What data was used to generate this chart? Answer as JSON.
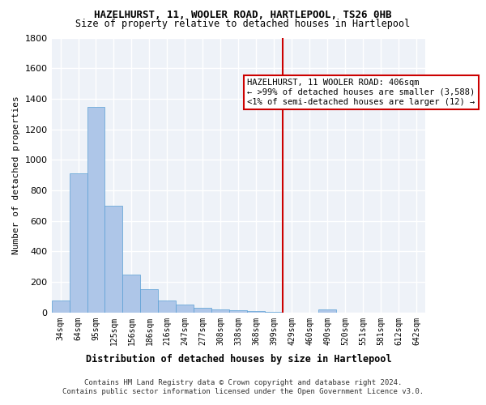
{
  "title": "HAZELHURST, 11, WOOLER ROAD, HARTLEPOOL, TS26 0HB",
  "subtitle": "Size of property relative to detached houses in Hartlepool",
  "xlabel": "Distribution of detached houses by size in Hartlepool",
  "ylabel": "Number of detached properties",
  "footer_line1": "Contains HM Land Registry data © Crown copyright and database right 2024.",
  "footer_line2": "Contains public sector information licensed under the Open Government Licence v3.0.",
  "categories": [
    "34sqm",
    "64sqm",
    "95sqm",
    "125sqm",
    "156sqm",
    "186sqm",
    "216sqm",
    "247sqm",
    "277sqm",
    "308sqm",
    "338sqm",
    "368sqm",
    "399sqm",
    "429sqm",
    "460sqm",
    "490sqm",
    "520sqm",
    "551sqm",
    "581sqm",
    "612sqm",
    "642sqm"
  ],
  "values": [
    80,
    910,
    1345,
    700,
    250,
    150,
    80,
    50,
    28,
    20,
    13,
    10,
    5,
    0,
    0,
    20,
    0,
    0,
    0,
    0,
    0
  ],
  "bar_color": "#aec6e8",
  "bar_edge_color": "#5a9fd4",
  "bg_color": "#eef2f8",
  "grid_color": "#ffffff",
  "vline_x": 12.5,
  "vline_color": "#cc0000",
  "annotation_text": "HAZELHURST, 11 WOOLER ROAD: 406sqm\n← >99% of detached houses are smaller (3,588)\n<1% of semi-detached houses are larger (12) →",
  "annotation_box_color": "#cc0000",
  "ylim": [
    0,
    1800
  ],
  "yticks": [
    0,
    200,
    400,
    600,
    800,
    1000,
    1200,
    1400,
    1600,
    1800
  ]
}
